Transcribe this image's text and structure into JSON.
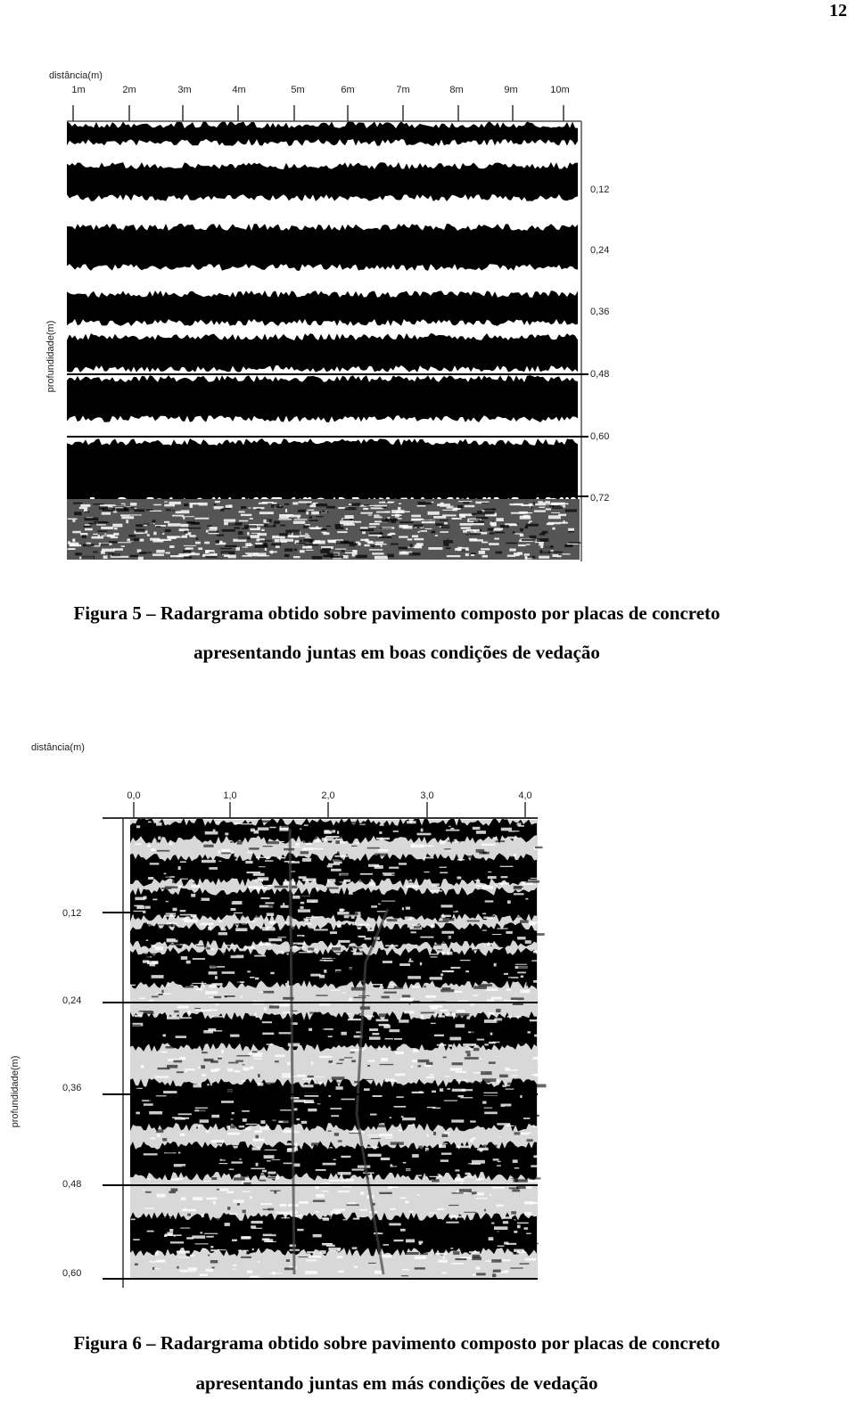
{
  "page_number": "12",
  "figure5": {
    "x_axis_title": "distância(m)",
    "x_labels": [
      "1m",
      "2m",
      "3m",
      "4m",
      "5m",
      "6m",
      "7m",
      "8m",
      "9m",
      "10m"
    ],
    "y_axis_title": "profundidade(m)",
    "y_labels": [
      "0,12",
      "0,24",
      "0,36",
      "0,48",
      "0,60",
      "0,72"
    ],
    "caption": [
      "Figura 5 – Radargrama obtido sobre pavimento composto por placas de concreto",
      "apresentando juntas em boas condições de vedação"
    ]
  },
  "figure6": {
    "x_axis_title": "distância(m)",
    "x_labels": [
      "0,0",
      "1,0",
      "2,0",
      "3,0",
      "4,0"
    ],
    "y_axis_title": "profundidade(m)",
    "y_labels": [
      "0,12",
      "0,24",
      "0,36",
      "0,48",
      "0,60"
    ],
    "caption": [
      "Figura 6 – Radargrama obtido sobre pavimento composto por  placas de concreto",
      "apresentando juntas em más condições de vedação"
    ]
  }
}
